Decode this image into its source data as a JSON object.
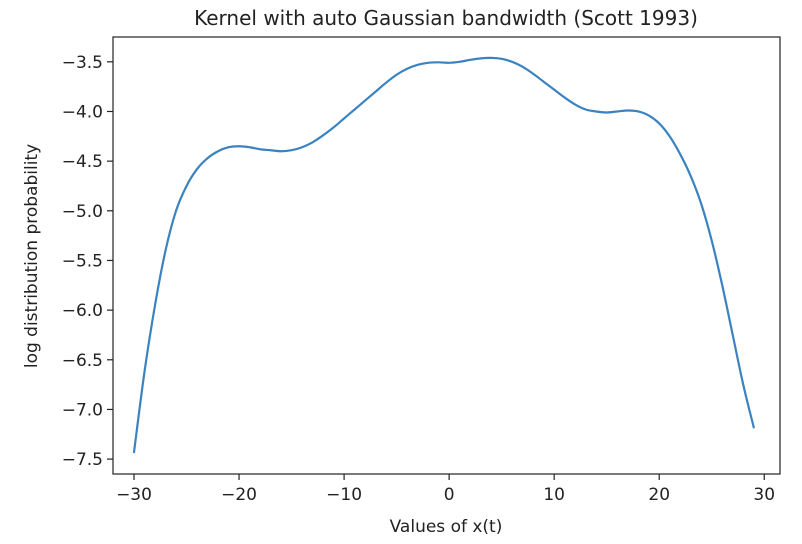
{
  "chart_data": {
    "type": "line",
    "title": "Kernel with auto Gaussian bandwidth (Scott 1993)",
    "xlabel": "Values of x(t)",
    "ylabel": "log distribution probability",
    "xlim": [
      -32,
      31.5
    ],
    "ylim": [
      -7.65,
      -3.25
    ],
    "grid": false,
    "xticks": [
      -30,
      -20,
      -10,
      0,
      10,
      20,
      30
    ],
    "xtick_labels": [
      "−30",
      "−20",
      "−10",
      "0",
      "10",
      "20",
      "30"
    ],
    "yticks": [
      -3.5,
      -4.0,
      -4.5,
      -5.0,
      -5.5,
      -6.0,
      -6.5,
      -7.0,
      -7.5
    ],
    "ytick_labels": [
      "−3.5",
      "−4.0",
      "−4.5",
      "−5.0",
      "−5.5",
      "−6.0",
      "−6.5",
      "−7.0",
      "−7.5"
    ],
    "series": [
      {
        "color": "#3a83c0",
        "x": [
          -30,
          -29,
          -28,
          -27,
          -26,
          -25,
          -24,
          -23,
          -22,
          -21,
          -20,
          -19,
          -18,
          -17,
          -16,
          -15,
          -14,
          -13,
          -12,
          -11,
          -10,
          -9,
          -8,
          -7,
          -6,
          -5,
          -4,
          -3,
          -2,
          -1,
          0,
          1,
          2,
          3,
          4,
          5,
          6,
          7,
          8,
          9,
          10,
          11,
          12,
          13,
          14,
          15,
          16,
          17,
          18,
          19,
          20,
          21,
          22,
          23,
          24,
          25,
          26,
          27,
          28,
          29
        ],
        "y": [
          -7.43,
          -6.62,
          -5.95,
          -5.4,
          -5.0,
          -4.75,
          -4.58,
          -4.47,
          -4.4,
          -4.36,
          -4.35,
          -4.36,
          -4.38,
          -4.39,
          -4.4,
          -4.39,
          -4.36,
          -4.31,
          -4.24,
          -4.16,
          -4.07,
          -3.98,
          -3.89,
          -3.8,
          -3.71,
          -3.63,
          -3.57,
          -3.53,
          -3.51,
          -3.505,
          -3.51,
          -3.5,
          -3.48,
          -3.465,
          -3.46,
          -3.47,
          -3.5,
          -3.55,
          -3.62,
          -3.7,
          -3.78,
          -3.86,
          -3.93,
          -3.98,
          -4.0,
          -4.01,
          -4.0,
          -3.99,
          -4.0,
          -4.04,
          -4.12,
          -4.25,
          -4.43,
          -4.65,
          -4.93,
          -5.3,
          -5.75,
          -6.25,
          -6.75,
          -7.18
        ]
      }
    ]
  }
}
